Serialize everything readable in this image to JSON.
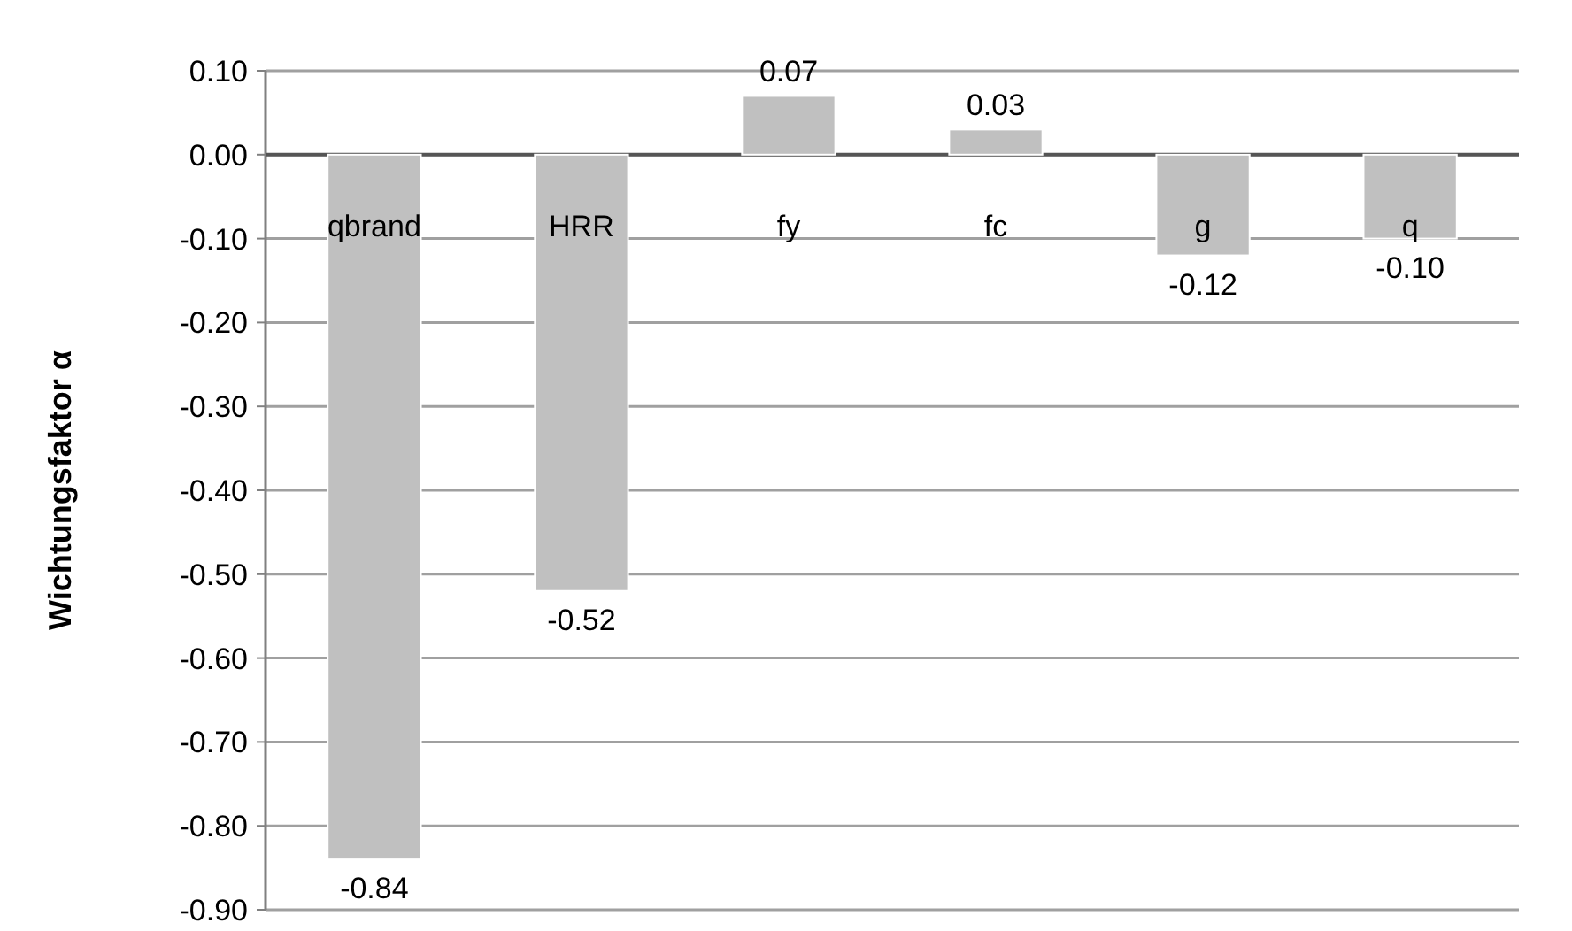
{
  "chart_data": {
    "type": "bar",
    "ylabel": "Wichtungsfaktor α",
    "categories": [
      "qbrand",
      "HRR",
      "fy",
      "fc",
      "g",
      "q"
    ],
    "values": [
      -0.84,
      -0.52,
      0.07,
      0.03,
      -0.12,
      -0.1
    ],
    "value_labels": [
      "-0.84",
      "-0.52",
      "0.07",
      "0.03",
      "-0.12",
      "-0.10"
    ],
    "color": "#c0c0c0",
    "grid": "y",
    "ylim": [
      -0.9,
      0.1
    ],
    "yticks": [
      {
        "value": -0.9,
        "label": "-0.90"
      },
      {
        "value": -0.8,
        "label": "-0.80"
      },
      {
        "value": -0.7,
        "label": "-0.70"
      },
      {
        "value": -0.6,
        "label": "-0.60"
      },
      {
        "value": -0.5,
        "label": "-0.50"
      },
      {
        "value": -0.4,
        "label": "-0.40"
      },
      {
        "value": -0.3,
        "label": "-0.30"
      },
      {
        "value": -0.2,
        "label": "-0.20"
      },
      {
        "value": -0.1,
        "label": "-0.10"
      },
      {
        "value": 0,
        "label": "0.00"
      },
      {
        "value": 0.1,
        "label": "0.10"
      }
    ]
  }
}
